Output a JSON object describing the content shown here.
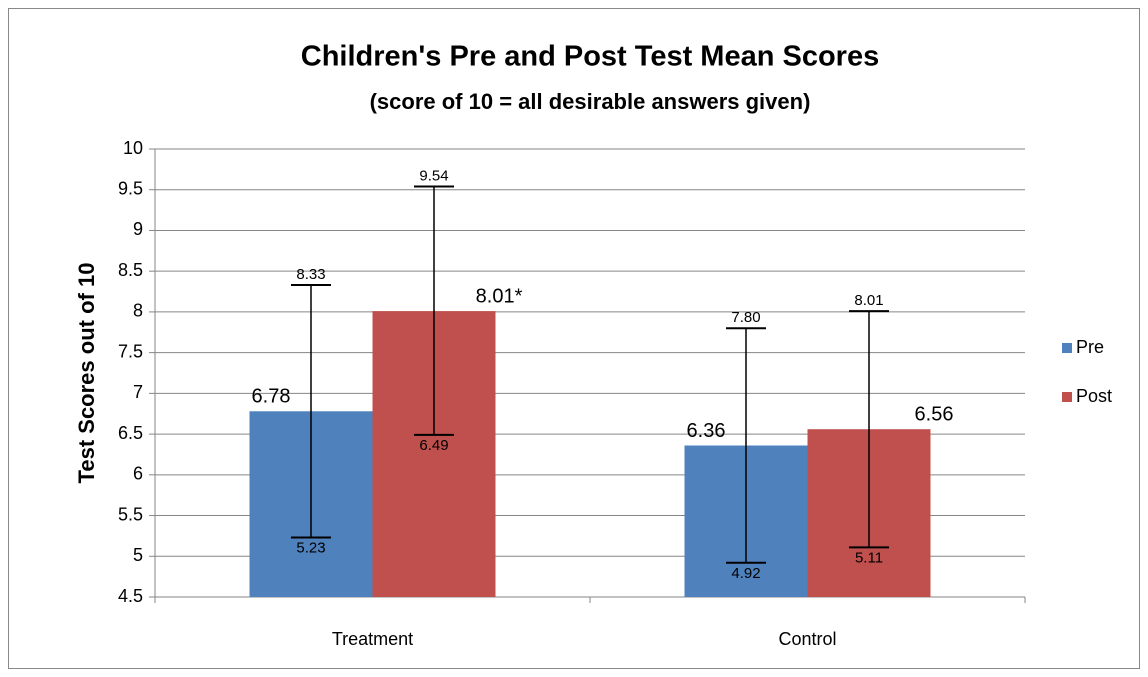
{
  "chart_data": {
    "type": "bar",
    "title": "Children's Pre and Post Test Mean Scores",
    "subtitle": "(score of 10 = all desirable answers given)",
    "y_label": "Test Scores out of 10",
    "categories": [
      "Treatment",
      "Control"
    ],
    "series": [
      {
        "name": "Pre",
        "color": "#4f81bd",
        "values": [
          6.78,
          6.36
        ],
        "error_high": [
          8.33,
          7.8
        ],
        "error_high_labels": [
          "8.33",
          "7.80"
        ],
        "error_low": [
          5.23,
          4.92
        ],
        "error_low_labels": [
          "5.23",
          "4.92"
        ]
      },
      {
        "name": "Post",
        "color": "#c0504d",
        "values": [
          8.01,
          6.56
        ],
        "value_labels": [
          "8.01*",
          "6.56"
        ],
        "error_high": [
          9.54,
          8.01
        ],
        "error_high_labels": [
          "9.54",
          "8.01"
        ],
        "error_low": [
          6.49,
          5.11
        ],
        "error_low_labels": [
          "6.49",
          "5.11"
        ]
      }
    ],
    "ylim": [
      4.5,
      10
    ],
    "yticks": [
      4.5,
      5,
      5.5,
      6,
      6.5,
      7,
      7.5,
      8,
      8.5,
      9,
      9.5,
      10
    ],
    "grid": true,
    "legend": "right"
  }
}
